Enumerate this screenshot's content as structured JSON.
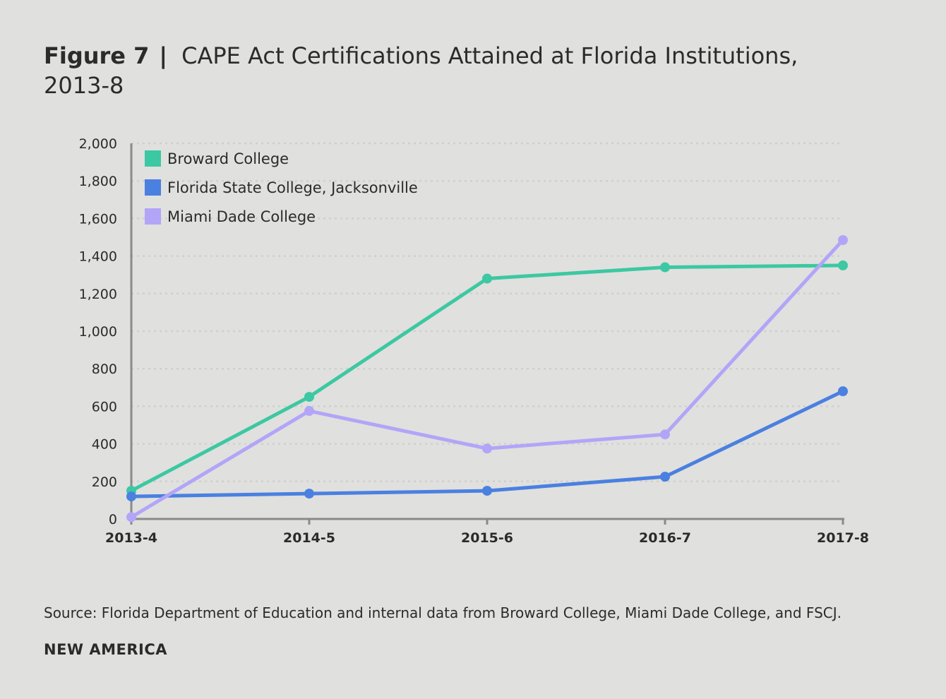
{
  "figure_label": "Figure 7",
  "separator": "|",
  "title": "CAPE Act Certifications Attained at Florida Institutions, 2013-8",
  "source": "Source: Florida Department of Education and internal data from Broward College, Miami Dade College, and FSCJ.",
  "brand": "NEW AMERICA",
  "chart_data": {
    "type": "line",
    "title": "CAPE Act Certifications Attained at Florida Institutions, 2013-8",
    "categories": [
      "2013-4",
      "2014-5",
      "2015-6",
      "2016-7",
      "2017-8"
    ],
    "ylim": [
      0,
      2000
    ],
    "yticks": [
      0,
      200,
      400,
      600,
      800,
      1000,
      1200,
      1400,
      1600,
      1800,
      2000
    ],
    "ytick_labels": [
      "0",
      "200",
      "400",
      "600",
      "800",
      "1,000",
      "1,200",
      "1,400",
      "1,600",
      "1,800",
      "2,000"
    ],
    "grid": "horizontal dotted",
    "legend": "top-left",
    "series": [
      {
        "name": "Broward College",
        "color": "#3cc8a2",
        "values": [
          150,
          650,
          1280,
          1340,
          1350
        ]
      },
      {
        "name": "Florida State College, Jacksonville",
        "color": "#4a80e0",
        "values": [
          120,
          135,
          150,
          225,
          680
        ]
      },
      {
        "name": "Miami Dade College",
        "color": "#b2a5f8",
        "values": [
          10,
          575,
          375,
          450,
          1485
        ]
      }
    ]
  }
}
